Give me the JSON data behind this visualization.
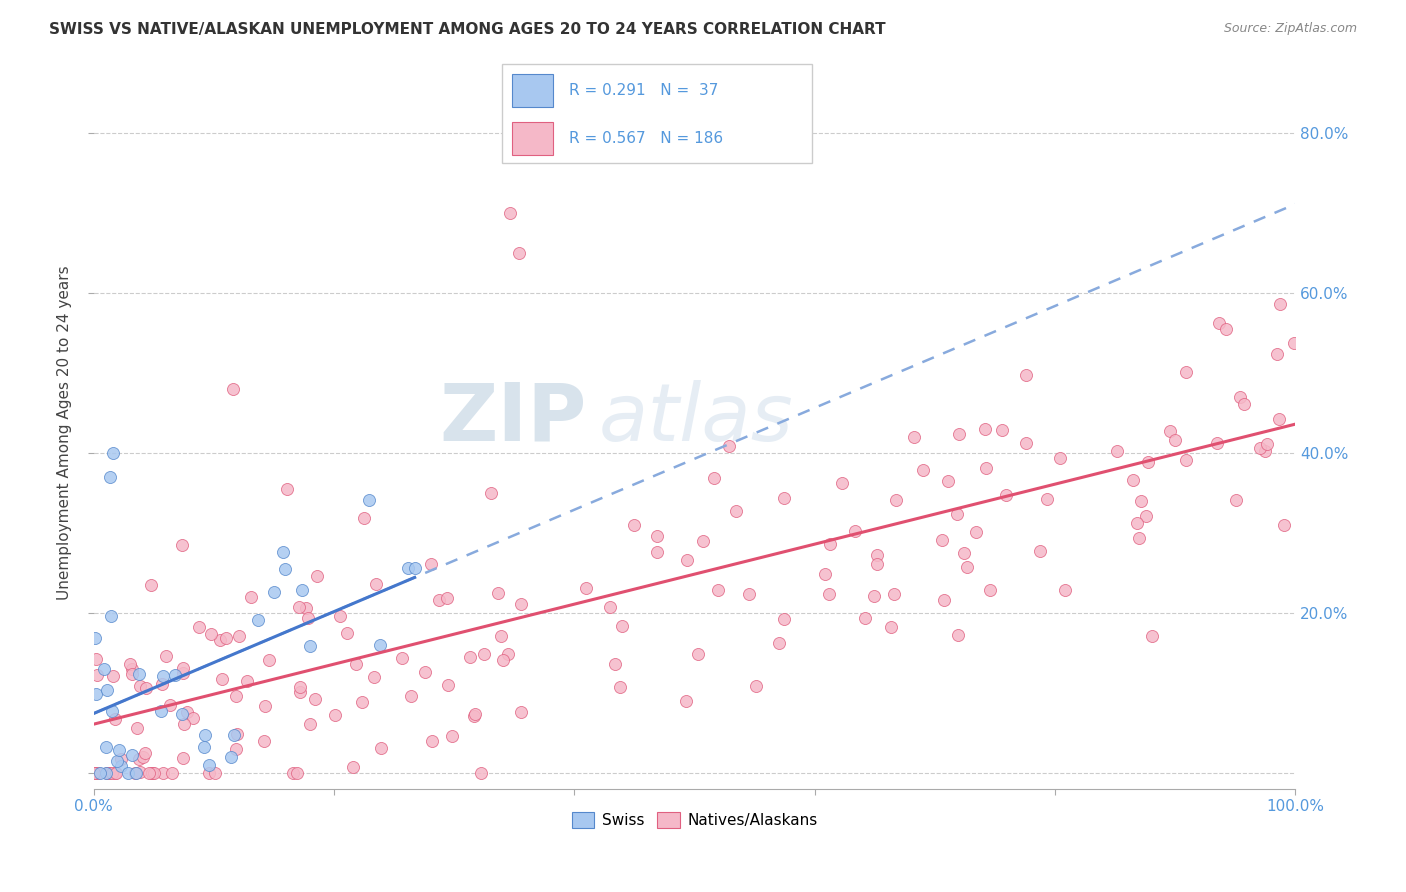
{
  "title": "SWISS VS NATIVE/ALASKAN UNEMPLOYMENT AMONG AGES 20 TO 24 YEARS CORRELATION CHART",
  "source": "Source: ZipAtlas.com",
  "ylabel": "Unemployment Among Ages 20 to 24 years",
  "xlim": [
    0.0,
    1.0
  ],
  "ylim": [
    -0.02,
    0.87
  ],
  "plot_ylim": [
    0.0,
    0.85
  ],
  "xticks": [
    0.0,
    0.2,
    0.4,
    0.6,
    0.8,
    1.0
  ],
  "xticklabels_ends": [
    "0.0%",
    "",
    "",
    "",
    "",
    "100.0%"
  ],
  "ytick_positions": [
    0.0,
    0.2,
    0.4,
    0.6,
    0.8
  ],
  "yticklabels_right": [
    "",
    "20.0%",
    "40.0%",
    "60.0%",
    "80.0%"
  ],
  "swiss_color": "#A8C8F0",
  "native_color": "#F5B8C8",
  "swiss_edge": "#5588CC",
  "native_edge": "#E06080",
  "trendline_swiss_solid_color": "#4477CC",
  "trendline_swiss_dash_color": "#88AADD",
  "trendline_native_color": "#E05070",
  "legend_swiss_label": "Swiss",
  "legend_native_label": "Natives/Alaskans",
  "R_swiss": 0.291,
  "N_swiss": 37,
  "R_native": 0.567,
  "N_native": 186,
  "grid_color": "#CCCCCC",
  "text_color": "#444444",
  "label_color": "#5599DD"
}
